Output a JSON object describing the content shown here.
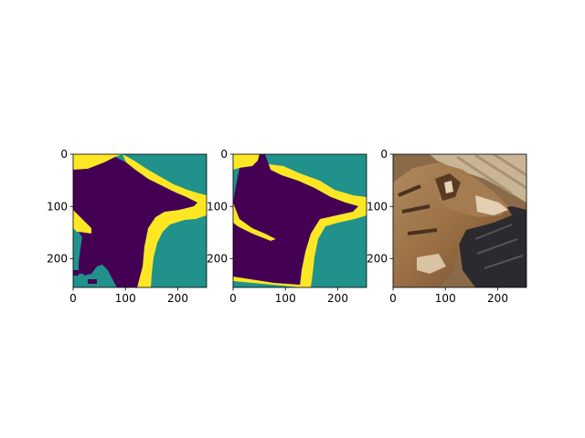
{
  "chart_data": [
    {
      "type": "heatmap",
      "title": "",
      "xlabel": "",
      "ylabel": "",
      "xlim": [
        0,
        255
      ],
      "ylim": [
        255,
        0
      ],
      "xticks": [
        0,
        100,
        200
      ],
      "yticks": [
        0,
        100,
        200
      ],
      "colormap": "viridis",
      "values_present": [
        0,
        1,
        2
      ],
      "value_colors": [
        "#440154",
        "#21918c",
        "#fde725"
      ],
      "content": "segmentation mask: background, foreground, boundary band"
    },
    {
      "type": "heatmap",
      "title": "",
      "xlabel": "",
      "ylabel": "",
      "xlim": [
        0,
        255
      ],
      "ylim": [
        255,
        0
      ],
      "xticks": [
        0,
        100,
        200
      ],
      "yticks": [
        0,
        100,
        200
      ],
      "colormap": "viridis",
      "values_present": [
        0,
        1,
        2
      ],
      "value_colors": [
        "#440154",
        "#21918c",
        "#fde725"
      ],
      "content": "segmentation mask (second)"
    },
    {
      "type": "image",
      "title": "",
      "xlabel": "",
      "ylabel": "",
      "xlim": [
        0,
        255
      ],
      "ylim": [
        255,
        0
      ],
      "xticks": [
        0,
        100,
        200
      ],
      "yticks": [
        0,
        100,
        200
      ],
      "content": "photo of a dog lying down"
    }
  ],
  "colors": {
    "purple": "#440154",
    "teal": "#21918c",
    "yellow": "#fde725"
  }
}
